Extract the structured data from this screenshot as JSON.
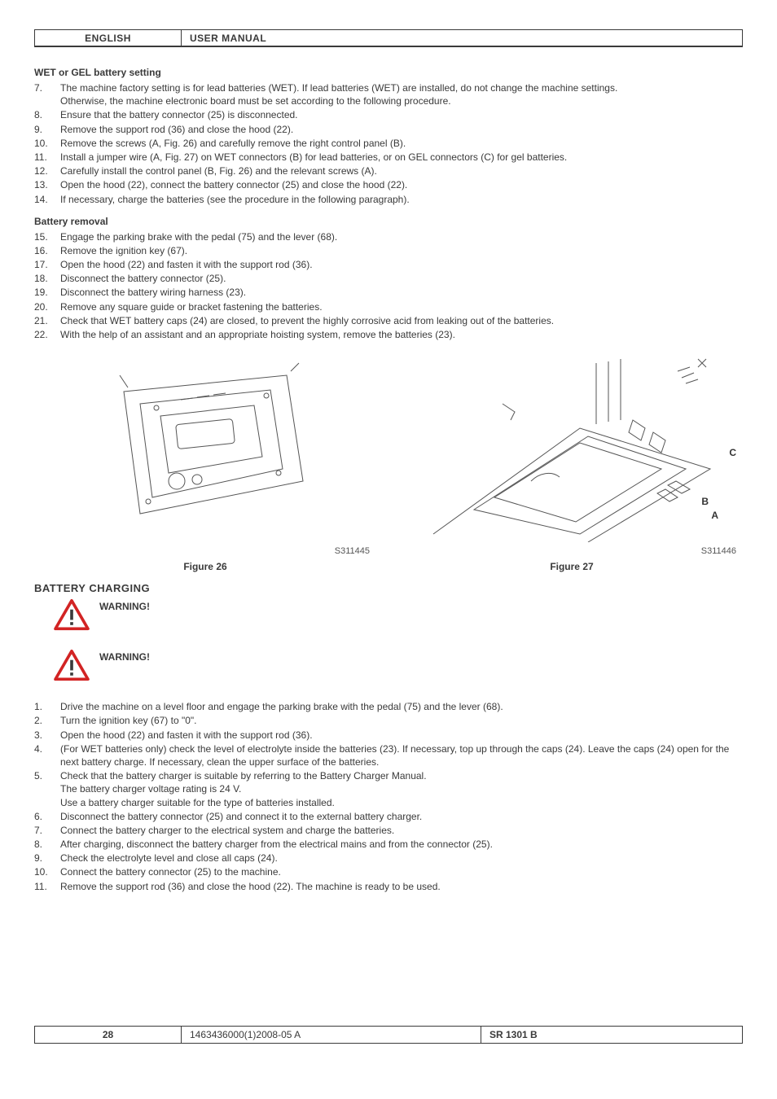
{
  "header": {
    "language": "ENGLISH",
    "manual": "USER MANUAL"
  },
  "footer": {
    "page": "28",
    "doc": "1463436000(1)2008-05 A",
    "model": "SR 1301 B"
  },
  "sec1": {
    "title": "WET or GEL battery setting",
    "items": [
      {
        "n": "7.",
        "t": "The machine factory setting is for lead batteries (WET). If lead batteries (WET) are installed, do not change the machine settings.",
        "t2": "Otherwise, the machine electronic board must be set according to the following procedure."
      },
      {
        "n": "8.",
        "t": "Ensure that the battery connector (25) is disconnected."
      },
      {
        "n": "9.",
        "t": "Remove the support rod (36) and close the hood (22)."
      },
      {
        "n": "10.",
        "t": "Remove the screws (A, Fig. 26) and carefully remove the right control panel (B)."
      },
      {
        "n": "11.",
        "t": "Install a jumper wire (A, Fig. 27) on WET connectors (B) for lead batteries, or on GEL connectors (C) for gel batteries."
      },
      {
        "n": "12.",
        "t": "Carefully install the control panel (B, Fig. 26) and the relevant screws (A)."
      },
      {
        "n": "13.",
        "t": "Open the hood (22), connect the battery connector (25) and close the hood (22)."
      },
      {
        "n": "14.",
        "t": "If necessary, charge the batteries (see the procedure in the following paragraph)."
      }
    ]
  },
  "sec2": {
    "title": "Battery removal",
    "items": [
      {
        "n": "15.",
        "t": "Engage the parking brake with the pedal (75) and the lever (68)."
      },
      {
        "n": "16.",
        "t": "Remove the ignition key (67)."
      },
      {
        "n": "17.",
        "t": "Open the hood (22) and fasten it with the support rod (36)."
      },
      {
        "n": "18.",
        "t": "Disconnect the battery connector (25)."
      },
      {
        "n": "19.",
        "t": "Disconnect the battery wiring harness (23)."
      },
      {
        "n": "20.",
        "t": "Remove any square guide or bracket fastening the batteries."
      },
      {
        "n": "21.",
        "t": "Check that WET battery caps (24) are closed, to prevent the highly corrosive acid from leaking out of the batteries."
      },
      {
        "n": "22.",
        "t": "With the help of an assistant and an appropriate hoisting system, remove the batteries (23)."
      }
    ]
  },
  "figures": {
    "left": {
      "id": "S311445",
      "caption": "Figure 26"
    },
    "right": {
      "id": "S311446",
      "caption": "Figure 27",
      "labels": {
        "a": "A",
        "b": "B",
        "c": "C"
      }
    }
  },
  "sec3": {
    "heading": "BATTERY CHARGING",
    "warn1": "WARNING!",
    "warn2": "WARNING!",
    "items": [
      {
        "n": "1.",
        "t": "Drive the machine on a level floor and engage the parking brake with the pedal (75) and the lever (68)."
      },
      {
        "n": "2.",
        "t": "Turn the ignition key (67) to \"0\"."
      },
      {
        "n": "3.",
        "t": "Open the hood (22) and fasten it with the support rod (36)."
      },
      {
        "n": "4.",
        "t": "(For WET batteries only) check the level of electrolyte inside the batteries (23). If necessary, top up through the caps (24). Leave the caps (24) open for the next battery charge. If necessary, clean the upper surface of the batteries."
      },
      {
        "n": "5.",
        "t": "Check that the battery charger is suitable by referring to the Battery Charger Manual.",
        "t2": "The battery charger voltage rating is 24 V.",
        "t3": "Use a battery charger suitable for the type of batteries installed."
      },
      {
        "n": "6.",
        "t": "Disconnect the battery connector (25) and connect it to the external battery charger."
      },
      {
        "n": "7.",
        "t": "Connect the battery charger to the electrical system and charge the batteries."
      },
      {
        "n": "8.",
        "t": "After charging, disconnect the battery charger from the electrical mains and from the connector (25)."
      },
      {
        "n": "9.",
        "t": "Check the electrolyte level and close all caps (24)."
      },
      {
        "n": "10.",
        "t": "Connect the battery connector (25) to the machine."
      },
      {
        "n": "11.",
        "t": "Remove the support rod (36) and close the hood (22). The machine is ready to be used."
      }
    ]
  },
  "colors": {
    "text": "#3a3a3a",
    "warn": "#d22323"
  }
}
